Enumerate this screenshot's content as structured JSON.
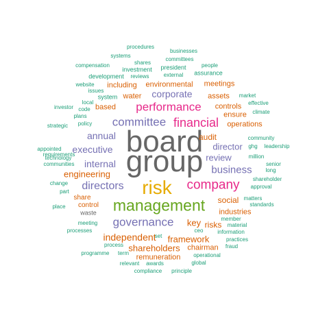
{
  "palette": {
    "teal": "#1b9e77",
    "orange": "#d95f02",
    "purple": "#7570b3",
    "pink": "#e7298a",
    "green": "#66a61e",
    "gold": "#e6ab02",
    "gray": "#666666"
  },
  "words": [
    "board",
    "group",
    "risk",
    "management",
    "company",
    "financial",
    "performance",
    "committee",
    "governance",
    "directors",
    "business",
    "executive",
    "corporate",
    "annual",
    "internal",
    "director",
    "review",
    "independent",
    "engineering",
    "shareholders",
    "key",
    "framework",
    "audit",
    "social",
    "risks",
    "remuneration",
    "chairman",
    "including",
    "environmental",
    "meetings",
    "based",
    "water",
    "assets",
    "controls",
    "ensure",
    "operations",
    "industries",
    "share",
    "control",
    "waste",
    "system",
    "development",
    "investment",
    "president",
    "assurance",
    "people",
    "committees",
    "businesses",
    "procedures",
    "systems",
    "compensation",
    "shares",
    "external",
    "website",
    "issues",
    "reviews",
    "market",
    "effective",
    "climate",
    "local",
    "investor",
    "code",
    "plans",
    "policy",
    "strategic",
    "community",
    "ghg",
    "leadership",
    "appointed",
    "requirements",
    "technology",
    "million",
    "communities",
    "senior",
    "long",
    "shareholder",
    "change",
    "part",
    "approval",
    "matters",
    "place",
    "standards",
    "meeting",
    "processes",
    "ceo",
    "information",
    "material",
    "member",
    "practices",
    "set",
    "process",
    "term",
    "fraud",
    "programme",
    "operational",
    "relevant",
    "awards",
    "global",
    "compliance",
    "principle"
  ]
}
